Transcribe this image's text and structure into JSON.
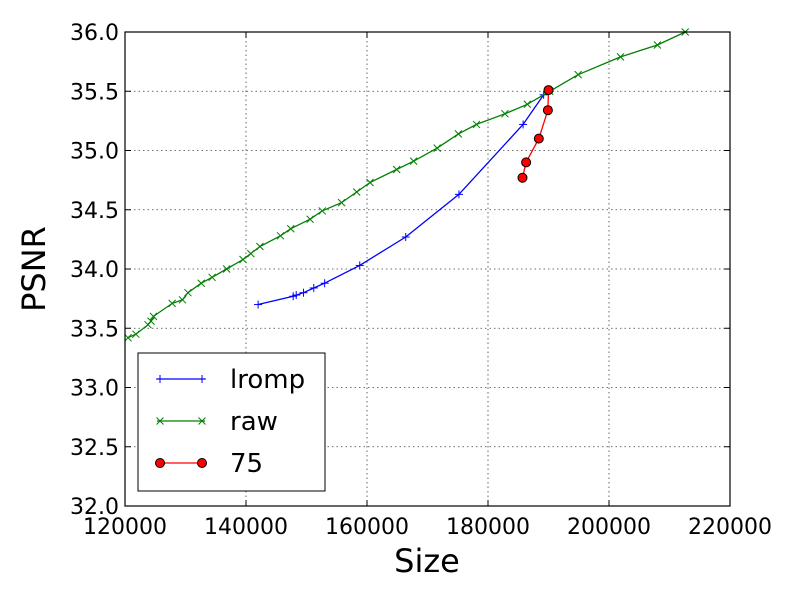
{
  "chart_data": {
    "type": "line",
    "title": "",
    "xlabel": "Size",
    "ylabel": "PSNR",
    "xlim": [
      120000,
      220000
    ],
    "ylim": [
      32.0,
      36.0
    ],
    "xticks": [
      120000,
      140000,
      160000,
      180000,
      200000,
      220000
    ],
    "yticks": [
      32.0,
      32.5,
      33.0,
      33.5,
      34.0,
      34.5,
      35.0,
      35.5,
      36.0
    ],
    "xtick_labels": [
      "120000",
      "140000",
      "160000",
      "180000",
      "200000",
      "220000"
    ],
    "ytick_labels": [
      "32.0",
      "32.5",
      "33.0",
      "33.5",
      "34.0",
      "34.5",
      "35.0",
      "35.5",
      "36.0"
    ],
    "grid": true,
    "legend_position": "lower-left",
    "series": [
      {
        "name": "lromp",
        "color": "#0000ff",
        "marker": "plus",
        "points": [
          [
            142000,
            33.7
          ],
          [
            147800,
            33.77
          ],
          [
            148300,
            33.78
          ],
          [
            149500,
            33.8
          ],
          [
            151200,
            33.84
          ],
          [
            153000,
            33.88
          ],
          [
            158800,
            34.03
          ],
          [
            166400,
            34.27
          ],
          [
            175200,
            34.63
          ],
          [
            185800,
            35.22
          ],
          [
            189200,
            35.47
          ]
        ]
      },
      {
        "name": "raw",
        "color": "#008000",
        "marker": "x",
        "points": [
          [
            120500,
            33.42
          ],
          [
            121800,
            33.45
          ],
          [
            123800,
            33.53
          ],
          [
            124300,
            33.56
          ],
          [
            124700,
            33.6
          ],
          [
            127800,
            33.71
          ],
          [
            129500,
            33.74
          ],
          [
            130400,
            33.8
          ],
          [
            132600,
            33.88
          ],
          [
            134400,
            33.93
          ],
          [
            136800,
            34.0
          ],
          [
            139500,
            34.08
          ],
          [
            140800,
            34.13
          ],
          [
            142300,
            34.19
          ],
          [
            145700,
            34.28
          ],
          [
            147400,
            34.34
          ],
          [
            150600,
            34.42
          ],
          [
            152600,
            34.49
          ],
          [
            155800,
            34.56
          ],
          [
            158300,
            34.65
          ],
          [
            160500,
            34.73
          ],
          [
            164900,
            34.84
          ],
          [
            167700,
            34.91
          ],
          [
            171600,
            35.02
          ],
          [
            175100,
            35.14
          ],
          [
            178100,
            35.22
          ],
          [
            182800,
            35.31
          ],
          [
            186500,
            35.39
          ],
          [
            190200,
            35.5
          ],
          [
            194900,
            35.64
          ],
          [
            201900,
            35.79
          ],
          [
            208000,
            35.89
          ],
          [
            212600,
            36.0
          ]
        ]
      },
      {
        "name": "75",
        "color": "#ff0000",
        "marker": "circle",
        "points": [
          [
            185700,
            34.77
          ],
          [
            186300,
            34.9
          ],
          [
            188400,
            35.1
          ],
          [
            189900,
            35.34
          ],
          [
            190000,
            35.51
          ]
        ]
      }
    ]
  }
}
